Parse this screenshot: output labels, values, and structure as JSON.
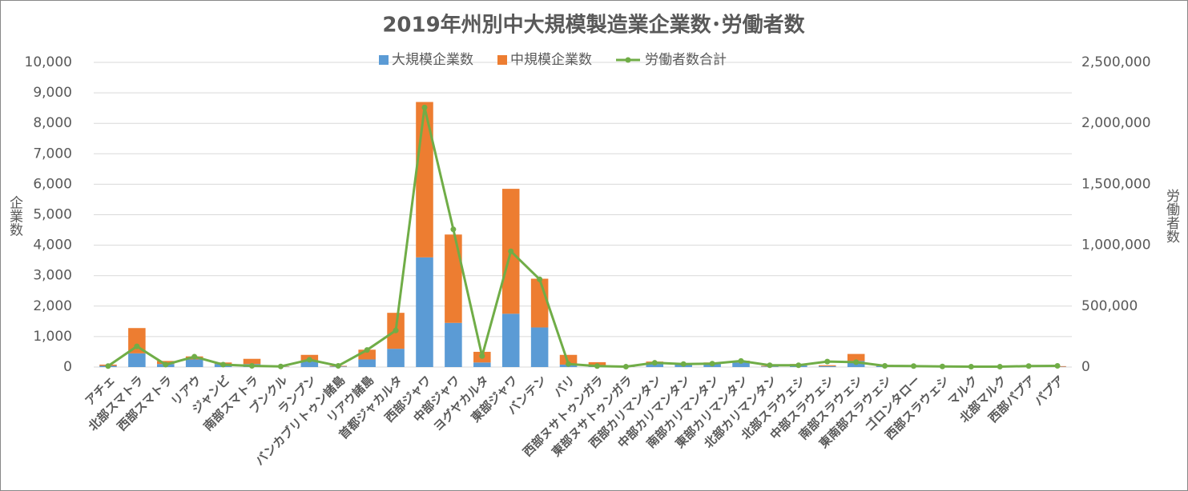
{
  "chart_data": {
    "type": "bar",
    "stacked": true,
    "title": "2019年州別中大規模製造業企業数･労働者数",
    "ylabel": "企業数",
    "y2label": "労働者数",
    "categories": [
      "アチェ",
      "北部スマトラ",
      "西部スマトラ",
      "リアウ",
      "ジャンビ",
      "南部スマトラ",
      "ブンクル",
      "ランプン",
      "バンカブリトゥン諸島",
      "リアウ諸島",
      "首都ジャカルタ",
      "西部ジャワ",
      "中部ジャワ",
      "ヨグヤカルタ",
      "東部ジャワ",
      "バンテン",
      "バリ",
      "西部ヌサトゥンガラ",
      "東部ヌサトゥンガラ",
      "西部カリマンタン",
      "中部カリマンタン",
      "南部カリマンタン",
      "東部カリマンタン",
      "北部カリマンタン",
      "北部スラウェシ",
      "中部スラウェシ",
      "南部スラウェシ",
      "東南部スラウェシ",
      "ゴロンタロー",
      "西部スラウェシ",
      "マルク",
      "北部マルク",
      "西部パプア",
      "パプア"
    ],
    "series": [
      {
        "name": "大規模企業数",
        "type": "bar",
        "color": "#5b9bd5",
        "values": [
          40,
          450,
          100,
          250,
          100,
          100,
          10,
          200,
          20,
          250,
          600,
          3600,
          1450,
          150,
          1750,
          1300,
          80,
          30,
          10,
          100,
          80,
          100,
          150,
          20,
          50,
          30,
          200,
          30,
          10,
          10,
          10,
          10,
          10,
          10
        ]
      },
      {
        "name": "中規模企業数",
        "type": "bar",
        "color": "#ed7d31",
        "values": [
          40,
          830,
          100,
          100,
          50,
          170,
          10,
          200,
          20,
          320,
          1180,
          5100,
          2900,
          350,
          4100,
          1600,
          320,
          130,
          20,
          80,
          50,
          50,
          60,
          20,
          50,
          30,
          230,
          40,
          20,
          10,
          10,
          10,
          20,
          20
        ]
      },
      {
        "name": "労働者数合計",
        "type": "line",
        "axis": "y2",
        "color": "#70ad47",
        "values": [
          8000,
          170000,
          20000,
          85000,
          20000,
          10000,
          5000,
          60000,
          10000,
          140000,
          300000,
          2130000,
          1130000,
          90000,
          950000,
          720000,
          25000,
          8000,
          3000,
          35000,
          25000,
          28000,
          50000,
          15000,
          15000,
          45000,
          40000,
          10000,
          8000,
          5000,
          3000,
          3000,
          8000,
          10000
        ]
      }
    ],
    "ylim": [
      0,
      10000
    ],
    "yticks": [
      0,
      {
        "value": 1000,
        "label": "1,000"
      },
      {
        "value": 2000,
        "label": "2,000"
      },
      {
        "value": 3000,
        "label": "3,000"
      },
      {
        "value": 4000,
        "label": "4,000"
      },
      {
        "value": 5000,
        "label": "5,000"
      },
      {
        "value": 6000,
        "label": "6,000"
      },
      {
        "value": 7000,
        "label": "7,000"
      },
      {
        "value": 8000,
        "label": "8,000"
      },
      {
        "value": 9000,
        "label": "9,000"
      },
      {
        "value": 10000,
        "label": "10,000"
      }
    ],
    "y2lim": [
      0,
      2500000
    ],
    "y2ticks": [
      0,
      {
        "value": 500000,
        "label": "500,000"
      },
      {
        "value": 1000000,
        "label": "1,000,000"
      },
      {
        "value": 1500000,
        "label": "1,500,000"
      },
      {
        "value": 2000000,
        "label": "2,000,000"
      },
      {
        "value": 2500000,
        "label": "2,500,000"
      }
    ],
    "grid": true,
    "legend": "top"
  }
}
